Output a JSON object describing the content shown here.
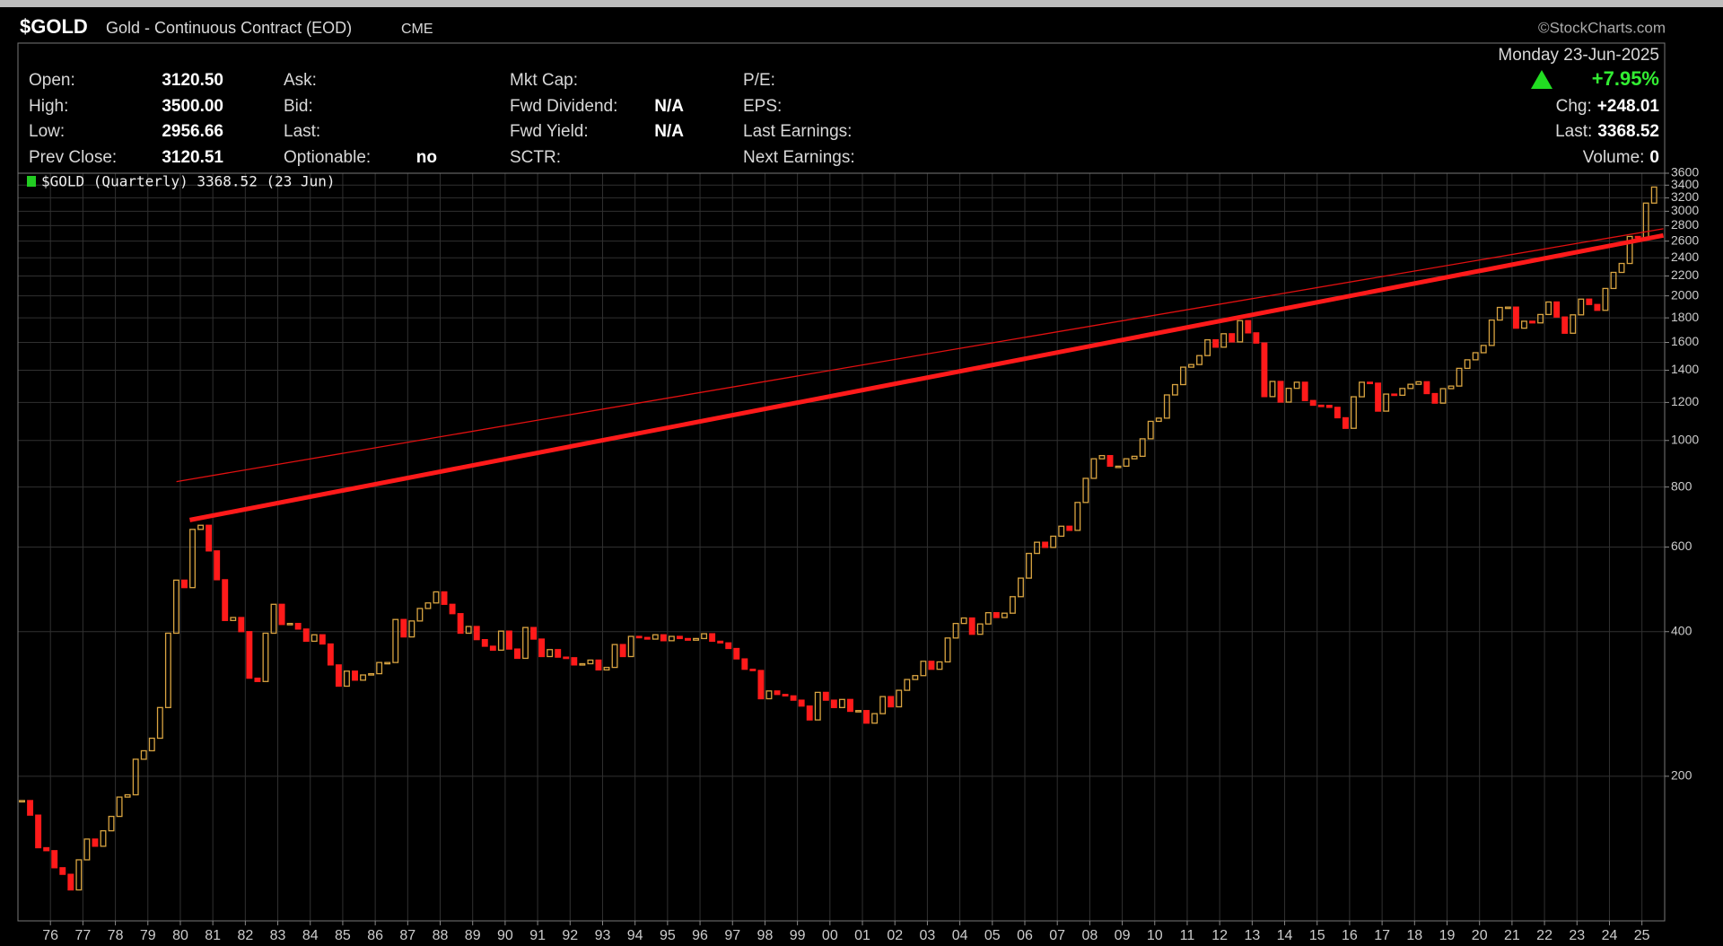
{
  "header": {
    "symbol": "$GOLD",
    "name": "Gold - Continuous Contract (EOD)",
    "exchange": "CME",
    "watermark": "©StockCharts.com",
    "date": "Monday  23-Jun-2025",
    "change_pct": "+7.95%",
    "columns": [
      [
        {
          "label": "Open:",
          "value": "3120.50"
        },
        {
          "label": "High:",
          "value": "3500.00"
        },
        {
          "label": "Low:",
          "value": "2956.66"
        },
        {
          "label": "Prev Close:",
          "value": "3120.51"
        }
      ],
      [
        {
          "label": "Ask:"
        },
        {
          "label": "Bid:"
        },
        {
          "label": "Last:"
        },
        {
          "label": "Optionable:",
          "value": "no"
        }
      ],
      [
        {
          "label": "Mkt Cap:"
        },
        {
          "label": "Fwd Dividend:",
          "value": "N/A"
        },
        {
          "label": "Fwd Yield:",
          "value": "N/A"
        },
        {
          "label": "SCTR:"
        }
      ],
      [
        {
          "label": "P/E:"
        },
        {
          "label": "EPS:"
        },
        {
          "label": "Last Earnings:"
        },
        {
          "label": "Next Earnings:"
        }
      ]
    ],
    "right": [
      {
        "label": "Chg:",
        "value": "+248.01"
      },
      {
        "label": "Last:",
        "value": "3368.52"
      },
      {
        "label": "Volume:",
        "value": "0"
      }
    ]
  },
  "chart_data": {
    "type": "candlestick",
    "legend": "$GOLD (Quarterly) 3368.52 (23 Jun)",
    "close": [
      178,
      166,
      142,
      140,
      129,
      125,
      116,
      134,
      148,
      143,
      154,
      165,
      181,
      183,
      217,
      226,
      240,
      278,
      397,
      512,
      494,
      653,
      666,
      589,
      513,
      422,
      428,
      400,
      320,
      315,
      397,
      456,
      414,
      416,
      405,
      382,
      394,
      377,
      341,
      308,
      331,
      317,
      325,
      327,
      345,
      345,
      424,
      390,
      421,
      447,
      459,
      484,
      456,
      436,
      397,
      410,
      385,
      373,
      366,
      401,
      368,
      352,
      408,
      386,
      355,
      367,
      354,
      353,
      341,
      343,
      349,
      333,
      337,
      376,
      355,
      391,
      389,
      386,
      394,
      383,
      391,
      387,
      384,
      387,
      396,
      382,
      379,
      369,
      351,
      334,
      332,
      290,
      301,
      296,
      294,
      288,
      280,
      262,
      299,
      288,
      278,
      289,
      273,
      274,
      258,
      270,
      293,
      279,
      302,
      318,
      324,
      347,
      334,
      346,
      388,
      416,
      427,
      395,
      415,
      438,
      428,
      437,
      473,
      517,
      582,
      614,
      599,
      632,
      663,
      650,
      743,
      834,
      916,
      930,
      884,
      884,
      916,
      927,
      1008,
      1096,
      1113,
      1244,
      1307,
      1421,
      1439,
      1502,
      1620,
      1564,
      1668,
      1604,
      1776,
      1675,
      1595,
      1234,
      1327,
      1202,
      1284,
      1322,
      1211,
      1184,
      1183,
      1172,
      1115,
      1060,
      1233,
      1322,
      1316,
      1151,
      1249,
      1242,
      1283,
      1309,
      1325,
      1252,
      1196,
      1282,
      1298,
      1413,
      1472,
      1523,
      1577,
      1781,
      1892,
      1895,
      1713,
      1771,
      1757,
      1829,
      1942,
      1807,
      1672,
      1826,
      1969,
      1919,
      1866,
      2072,
      2238,
      2336,
      2659,
      2641,
      3120,
      3369
    ],
    "up_color": "#d9a441",
    "down_color": "#ff1a1a",
    "xlim": [
      1975,
      2025.7
    ],
    "xticks": [
      {
        "value": 1976,
        "label": "76"
      },
      {
        "value": 1977,
        "label": "77"
      },
      {
        "value": 1978,
        "label": "78"
      },
      {
        "value": 1979,
        "label": "79"
      },
      {
        "value": 1980,
        "label": "80"
      },
      {
        "value": 1981,
        "label": "81"
      },
      {
        "value": 1982,
        "label": "82"
      },
      {
        "value": 1983,
        "label": "83"
      },
      {
        "value": 1984,
        "label": "84"
      },
      {
        "value": 1985,
        "label": "85"
      },
      {
        "value": 1986,
        "label": "86"
      },
      {
        "value": 1987,
        "label": "87"
      },
      {
        "value": 1988,
        "label": "88"
      },
      {
        "value": 1989,
        "label": "89"
      },
      {
        "value": 1990,
        "label": "90"
      },
      {
        "value": 1991,
        "label": "91"
      },
      {
        "value": 1992,
        "label": "92"
      },
      {
        "value": 1993,
        "label": "93"
      },
      {
        "value": 1994,
        "label": "94"
      },
      {
        "value": 1995,
        "label": "95"
      },
      {
        "value": 1996,
        "label": "96"
      },
      {
        "value": 1997,
        "label": "97"
      },
      {
        "value": 1998,
        "label": "98"
      },
      {
        "value": 1999,
        "label": "99"
      },
      {
        "value": 2000,
        "label": "00"
      },
      {
        "value": 2001,
        "label": "01"
      },
      {
        "value": 2002,
        "label": "02"
      },
      {
        "value": 2003,
        "label": "03"
      },
      {
        "value": 2004,
        "label": "04"
      },
      {
        "value": 2005,
        "label": "05"
      },
      {
        "value": 2006,
        "label": "06"
      },
      {
        "value": 2007,
        "label": "07"
      },
      {
        "value": 2008,
        "label": "08"
      },
      {
        "value": 2009,
        "label": "09"
      },
      {
        "value": 2010,
        "label": "10"
      },
      {
        "value": 2011,
        "label": "11"
      },
      {
        "value": 2012,
        "label": "12"
      },
      {
        "value": 2013,
        "label": "13"
      },
      {
        "value": 2014,
        "label": "14"
      },
      {
        "value": 2015,
        "label": "15"
      },
      {
        "value": 2016,
        "label": "16"
      },
      {
        "value": 2017,
        "label": "17"
      },
      {
        "value": 2018,
        "label": "18"
      },
      {
        "value": 2019,
        "label": "19"
      },
      {
        "value": 2020,
        "label": "20"
      },
      {
        "value": 2021,
        "label": "21"
      },
      {
        "value": 2022,
        "label": "22"
      },
      {
        "value": 2023,
        "label": "23"
      },
      {
        "value": 2024,
        "label": "24"
      },
      {
        "value": 2025,
        "label": "25"
      }
    ],
    "ylim": [
      100,
      3600
    ],
    "yticks": [
      200,
      400,
      600,
      800,
      1000,
      1200,
      1400,
      1600,
      1800,
      2000,
      2200,
      2400,
      2600,
      2800,
      3000,
      3200,
      3400,
      3600
    ],
    "log_scale": true,
    "grid": true,
    "trendlines": [
      {
        "color": "#ff1a1a",
        "x": [
          1980.29,
          2025.66
        ],
        "y": [
          683,
          2672
        ]
      },
      {
        "color": "#e01010",
        "x": [
          1979.88,
          2025.66
        ],
        "y": [
          821,
          2759
        ]
      }
    ]
  }
}
